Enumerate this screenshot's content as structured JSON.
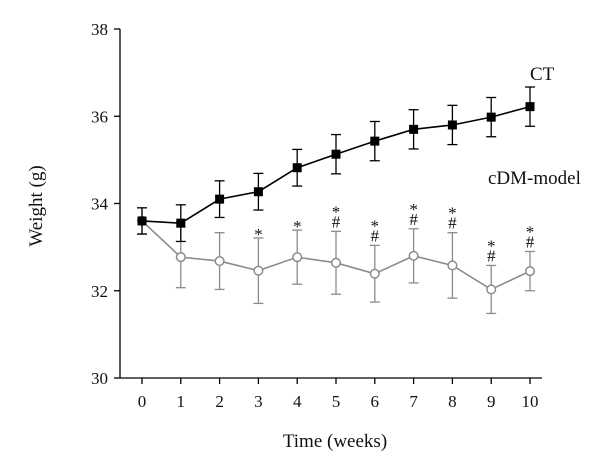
{
  "chart_data": {
    "type": "line",
    "xlabel": "Time (weeks)",
    "ylabel": "Weight (g)",
    "x": [
      0,
      1,
      2,
      3,
      4,
      5,
      6,
      7,
      8,
      9,
      10
    ],
    "xlim": [
      0,
      10
    ],
    "ylim": [
      30,
      38
    ],
    "y_ticks": [
      30,
      32,
      34,
      36,
      38
    ],
    "grid": false,
    "series": [
      {
        "name": "CT",
        "color": "#000000",
        "marker": "filled-square",
        "values": [
          33.6,
          33.55,
          34.1,
          34.27,
          34.82,
          35.13,
          35.43,
          35.7,
          35.8,
          35.98,
          36.22
        ],
        "error": [
          0.3,
          0.42,
          0.42,
          0.42,
          0.42,
          0.45,
          0.45,
          0.45,
          0.45,
          0.45,
          0.45
        ]
      },
      {
        "name": "cDM-model",
        "color": "#8c8c8c",
        "marker": "open-circle",
        "values": [
          33.6,
          32.77,
          32.68,
          32.46,
          32.77,
          32.64,
          32.39,
          32.8,
          32.58,
          32.03,
          32.45
        ],
        "error": [
          0.3,
          0.7,
          0.65,
          0.75,
          0.62,
          0.72,
          0.65,
          0.62,
          0.75,
          0.55,
          0.45
        ]
      }
    ],
    "annotations": [
      {
        "x": 3,
        "text": [
          "*"
        ]
      },
      {
        "x": 4,
        "text": [
          "*"
        ]
      },
      {
        "x": 5,
        "text": [
          "*",
          "#"
        ]
      },
      {
        "x": 6,
        "text": [
          "*",
          "#"
        ]
      },
      {
        "x": 7,
        "text": [
          "*",
          "#"
        ]
      },
      {
        "x": 8,
        "text": [
          "*",
          "#"
        ]
      },
      {
        "x": 9,
        "text": [
          "*",
          "#"
        ]
      },
      {
        "x": 10,
        "text": [
          "*",
          "#"
        ]
      }
    ]
  }
}
